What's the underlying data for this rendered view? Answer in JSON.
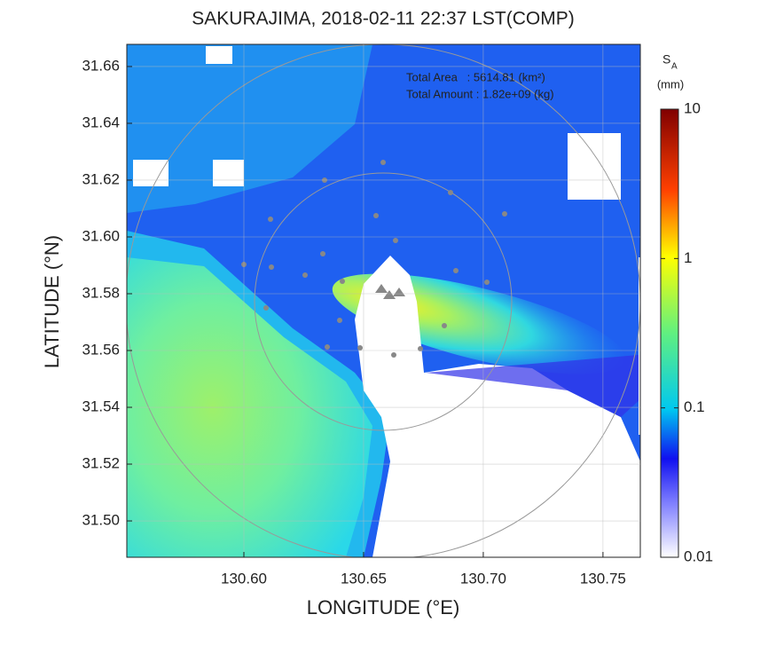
{
  "chart_data": {
    "type": "radar-map",
    "title": "SAKURAJIMA, 2018-02-11 22:37 LST(COMP)",
    "xlabel": "LONGITUDE (°E)",
    "ylabel": "LATITUDE (°N)",
    "xlim": [
      130.5511,
      130.7656
    ],
    "ylim": [
      31.4872,
      31.6678
    ],
    "xticks": [
      {
        "value": 130.6,
        "label": "130.60"
      },
      {
        "value": 130.65,
        "label": "130.65"
      },
      {
        "value": 130.7,
        "label": "130.70"
      },
      {
        "value": 130.75,
        "label": "130.75"
      }
    ],
    "yticks": [
      {
        "value": 31.5,
        "label": "31.50"
      },
      31.52,
      31.54,
      31.56,
      31.58,
      {
        "value": 31.6,
        "label": "31.60"
      },
      31.62,
      31.64,
      31.66
    ],
    "grid": true,
    "annotations": [
      "Total Area   : 5614.81 (km²)",
      "Total Amount : 1.82e+09 (kg)"
    ],
    "colorbar": {
      "symbol": "S",
      "subscript": "A",
      "unit": "(mm)",
      "lim": [
        0.01,
        10
      ],
      "ticks": [
        0.01,
        0.1,
        1,
        10
      ],
      "log": true
    }
  }
}
